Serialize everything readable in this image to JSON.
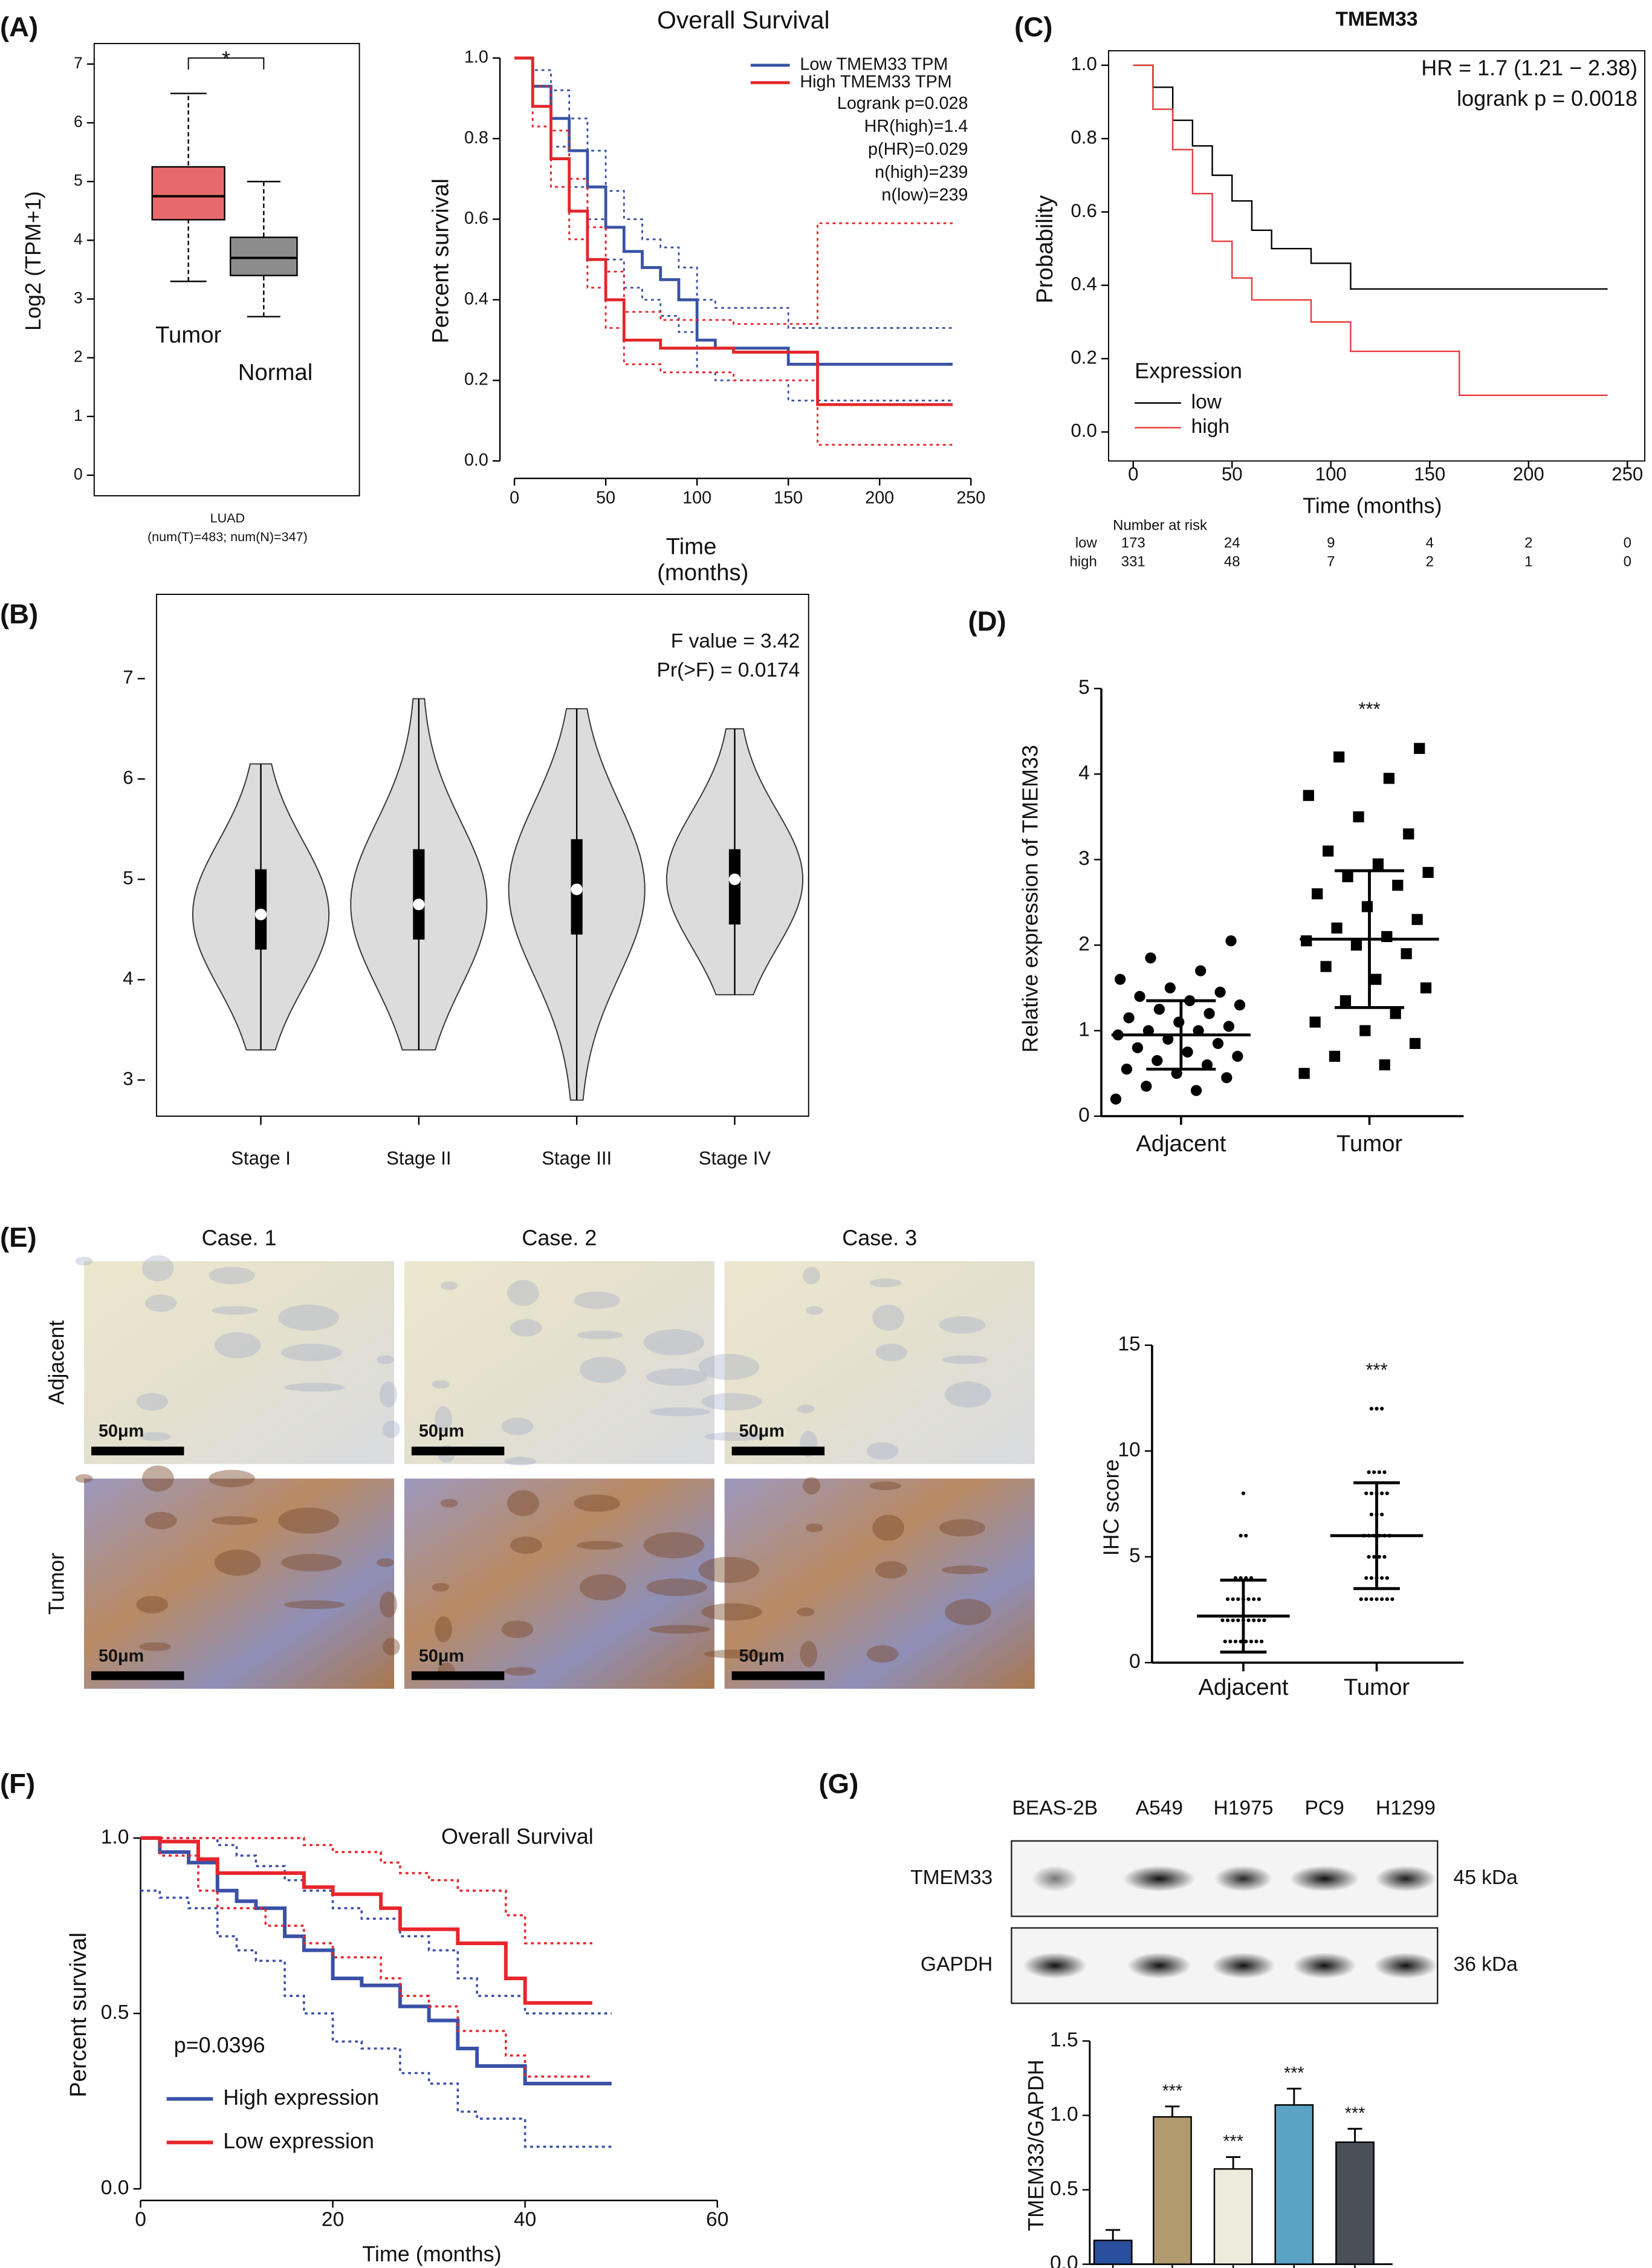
{
  "chart_data": [
    {
      "type": "box",
      "panel_label": "(A)",
      "ylabel": "Log2 (TPM+1)",
      "xlabel": "LUAD",
      "subtitle": "(num(T)=483; num(N)=347)",
      "significance": "*",
      "categories": [
        "Tumor",
        "Normal"
      ],
      "boxes": [
        {
          "q1": 4.35,
          "median": 4.75,
          "q3": 5.25,
          "whisker_low": 3.3,
          "whisker_high": 6.5,
          "color": "#e8696b"
        },
        {
          "q1": 3.4,
          "median": 3.7,
          "q3": 4.05,
          "whisker_low": 2.7,
          "whisker_high": 5.0,
          "color": "#8c8c8c"
        }
      ],
      "ylim": [
        -0.35,
        7.35
      ],
      "yticks": [
        0,
        1,
        2,
        3,
        4,
        5,
        6,
        7
      ]
    },
    {
      "type": "survival",
      "title": "Overall Survival",
      "ylabel": "Percent survival",
      "xlabel": [
        "Time",
        "(months)"
      ],
      "xlim": [
        0,
        250
      ],
      "xticks": [
        0,
        50,
        100,
        150,
        200,
        250
      ],
      "ylim": [
        0,
        1
      ],
      "yticks": [
        {
          "value": 0,
          "label": "0.0"
        },
        {
          "value": 0.2,
          "label": "0.2"
        },
        {
          "value": 0.4,
          "label": "0.4"
        },
        {
          "value": 0.6,
          "label": "0.6"
        },
        {
          "value": 0.8,
          "label": "0.8"
        },
        {
          "value": 1,
          "label": "1.0"
        }
      ],
      "annotations": [
        "Logrank p=0.028",
        "HR(high)=1.4",
        "p(HR)=0.029",
        "n(high)=239",
        "n(low)=239"
      ],
      "series": [
        {
          "name": "Low TMEM33 TPM",
          "color": "#3953a4",
          "x": [
            0,
            10,
            20,
            30,
            40,
            50,
            60,
            70,
            80,
            90,
            100,
            110,
            150,
            240
          ],
          "values": [
            1,
            0.93,
            0.85,
            0.77,
            0.68,
            0.58,
            0.52,
            0.48,
            0.45,
            0.4,
            0.3,
            0.28,
            0.24,
            0.24
          ],
          "ci_lower": [
            1,
            0.88,
            0.78,
            0.68,
            0.6,
            0.5,
            0.43,
            0.4,
            0.36,
            0.32,
            0.22,
            0.2,
            0.15,
            0.15
          ],
          "ci_upper": [
            1,
            0.97,
            0.92,
            0.85,
            0.77,
            0.67,
            0.6,
            0.55,
            0.53,
            0.48,
            0.4,
            0.38,
            0.33,
            0.33
          ]
        },
        {
          "name": "High TMEM33 TPM",
          "color": "#e3262a",
          "x": [
            0,
            10,
            20,
            30,
            40,
            50,
            60,
            80,
            120,
            166,
            240
          ],
          "values": [
            1,
            0.88,
            0.75,
            0.62,
            0.5,
            0.4,
            0.3,
            0.28,
            0.27,
            0.14,
            0.14
          ],
          "ci_lower": [
            1,
            0.83,
            0.68,
            0.55,
            0.43,
            0.33,
            0.24,
            0.22,
            0.2,
            0.04,
            0.04
          ],
          "ci_upper": [
            1,
            0.93,
            0.82,
            0.7,
            0.58,
            0.47,
            0.37,
            0.35,
            0.34,
            0.59,
            0.59
          ]
        }
      ]
    },
    {
      "type": "survival",
      "panel_label": "(C)",
      "title": "TMEM33",
      "ylabel": "Probability",
      "xlabel": [
        "Time (months)"
      ],
      "xlim": [
        0,
        250
      ],
      "xticks": [
        0,
        50,
        100,
        150,
        200,
        250
      ],
      "ylim": [
        0,
        1
      ],
      "yticks": [
        {
          "value": 0,
          "label": "0.0"
        },
        {
          "value": 0.2,
          "label": "0.2"
        },
        {
          "value": 0.4,
          "label": "0.4"
        },
        {
          "value": 0.6,
          "label": "0.6"
        },
        {
          "value": 0.8,
          "label": "0.8"
        },
        {
          "value": 1,
          "label": "1.0"
        }
      ],
      "annotations": [
        "HR = 1.7 (1.21 − 2.38)",
        "logrank  p = 0.0018"
      ],
      "legend_title": "Expression",
      "series": [
        {
          "name": "low",
          "color": "#000000",
          "x": [
            0,
            10,
            20,
            30,
            40,
            50,
            60,
            70,
            90,
            110,
            240
          ],
          "values": [
            1,
            0.94,
            0.85,
            0.78,
            0.7,
            0.63,
            0.55,
            0.5,
            0.46,
            0.39,
            0.39
          ]
        },
        {
          "name": "high",
          "color": "#e8393a",
          "x": [
            0,
            10,
            20,
            30,
            40,
            50,
            60,
            90,
            110,
            165,
            240
          ],
          "values": [
            1,
            0.88,
            0.77,
            0.65,
            0.52,
            0.42,
            0.36,
            0.3,
            0.22,
            0.1,
            0.1
          ]
        }
      ],
      "risk_table": {
        "title": "Number at risk",
        "rows": [
          {
            "name": "low",
            "color": "#000000",
            "values": [
              173,
              24,
              9,
              4,
              2,
              0
            ]
          },
          {
            "name": "high",
            "color": "#e8393a",
            "values": [
              331,
              48,
              7,
              2,
              1,
              0
            ]
          }
        ]
      }
    },
    {
      "type": "violin",
      "panel_label": "(B)",
      "annotations": [
        "F value = 3.42",
        "Pr(>F) = 0.0174"
      ],
      "categories": [
        "Stage I",
        "Stage II",
        "Stage III",
        "Stage IV"
      ],
      "violins": [
        {
          "min": 3.3,
          "q1": 4.3,
          "median": 4.65,
          "q3": 5.1,
          "max": 6.15
        },
        {
          "min": 3.3,
          "q1": 4.4,
          "median": 4.75,
          "q3": 5.3,
          "max": 6.8
        },
        {
          "min": 2.8,
          "q1": 4.45,
          "median": 4.9,
          "q3": 5.4,
          "max": 6.7
        },
        {
          "min": 3.85,
          "q1": 4.55,
          "median": 5.0,
          "q3": 5.3,
          "max": 6.5
        }
      ],
      "color": "#dcdcdc",
      "ylim": [
        2.64,
        7.84
      ],
      "yticks": [
        3,
        4,
        5,
        6,
        7
      ]
    },
    {
      "type": "dot-scatter",
      "panel_label": "(D)",
      "ylabel": "Relative expression of TMEM33",
      "significance": "***",
      "categories": [
        "Adjacent",
        "Tumor"
      ],
      "markers": [
        "circle",
        "square"
      ],
      "groups": [
        {
          "values": [
            0.2,
            0.3,
            0.35,
            0.45,
            0.5,
            0.55,
            0.6,
            0.65,
            0.7,
            0.75,
            0.8,
            0.85,
            0.9,
            0.95,
            1.0,
            1.0,
            1.05,
            1.1,
            1.15,
            1.2,
            1.25,
            1.3,
            1.35,
            1.4,
            1.45,
            1.5,
            1.6,
            1.7,
            1.85,
            2.05
          ],
          "mean": 0.95,
          "sd": 0.4
        },
        {
          "values": [
            0.5,
            0.6,
            0.7,
            0.85,
            1.0,
            1.1,
            1.2,
            1.35,
            1.5,
            1.6,
            1.75,
            1.9,
            2.0,
            2.05,
            2.1,
            2.2,
            2.3,
            2.45,
            2.6,
            2.7,
            2.8,
            2.85,
            2.95,
            3.1,
            3.3,
            3.5,
            3.75,
            3.95,
            4.2,
            4.3
          ],
          "mean": 2.07,
          "sd": 0.8
        }
      ],
      "ylim": [
        0,
        5
      ],
      "yticks": [
        0,
        1,
        2,
        3,
        4,
        5
      ]
    },
    {
      "type": "image-grid",
      "panel_label": "(E)",
      "columns": [
        "Case. 1",
        "Case. 2",
        "Case. 3"
      ],
      "rows": [
        "Adjacent",
        "Tumor"
      ],
      "scale_bar": "50μm"
    },
    {
      "type": "dot-scatter",
      "ylabel": "IHC score",
      "significance": "***",
      "categories": [
        "Adjacent",
        "Tumor"
      ],
      "markers": [
        "dot",
        "dot"
      ],
      "groups": [
        {
          "values": [
            1,
            1,
            1,
            1,
            1,
            1,
            1,
            1,
            2,
            2,
            2,
            2,
            2,
            2,
            2,
            2,
            2,
            3,
            3,
            3,
            3,
            3,
            3,
            3,
            4,
            4,
            4,
            4,
            6,
            6,
            8
          ],
          "mean": 2.2,
          "sd": 1.7
        },
        {
          "values": [
            3,
            3,
            3,
            3,
            3,
            3,
            3,
            4,
            4,
            4,
            4,
            4,
            5,
            5,
            5,
            5,
            6,
            6,
            6,
            6,
            6,
            6,
            7,
            7,
            7,
            8,
            8,
            8,
            8,
            8,
            9,
            9,
            9,
            9,
            12,
            12,
            12
          ],
          "mean": 6.0,
          "sd": 2.5
        }
      ],
      "ylim": [
        0,
        15
      ],
      "yticks": [
        0,
        5,
        10,
        15
      ]
    },
    {
      "type": "survival",
      "panel_label": "(F)",
      "title": "Overall Survival",
      "ylabel": "Percent survival",
      "xlabel": [
        "Time (months)"
      ],
      "xlim": [
        0,
        60
      ],
      "xticks": [
        0,
        20,
        40,
        60
      ],
      "ylim": [
        0,
        1
      ],
      "yticks": [
        {
          "value": 0,
          "label": "0.0"
        },
        {
          "value": 0.5,
          "label": "0.5"
        },
        {
          "value": 1,
          "label": "1.0"
        }
      ],
      "annotations": [
        "p=0.0396"
      ],
      "series": [
        {
          "name": "High expression",
          "color": "#3a50a8",
          "x": [
            0,
            2,
            5,
            8,
            10,
            12,
            15,
            17,
            20,
            23,
            27,
            30,
            33,
            35,
            40,
            49
          ],
          "values": [
            1,
            0.96,
            0.93,
            0.85,
            0.82,
            0.8,
            0.72,
            0.68,
            0.6,
            0.58,
            0.52,
            0.48,
            0.4,
            0.35,
            0.3,
            0.3
          ],
          "ci_lower": [
            0.85,
            0.83,
            0.8,
            0.72,
            0.68,
            0.65,
            0.55,
            0.5,
            0.42,
            0.4,
            0.33,
            0.3,
            0.22,
            0.2,
            0.12,
            0.12
          ],
          "ci_upper": [
            1,
            1,
            1,
            0.98,
            0.95,
            0.92,
            0.88,
            0.85,
            0.8,
            0.77,
            0.72,
            0.68,
            0.6,
            0.55,
            0.5,
            0.5
          ]
        },
        {
          "name": "Low expression",
          "color": "#e8262c",
          "x": [
            0,
            2,
            6,
            8,
            13,
            17,
            20,
            25,
            27,
            30,
            33,
            38,
            40,
            47
          ],
          "values": [
            1,
            0.99,
            0.94,
            0.9,
            0.9,
            0.86,
            0.84,
            0.8,
            0.74,
            0.74,
            0.7,
            0.6,
            0.53,
            0.53
          ],
          "ci_lower": [
            1,
            0.95,
            0.85,
            0.8,
            0.75,
            0.7,
            0.66,
            0.6,
            0.55,
            0.52,
            0.45,
            0.38,
            0.32,
            0.32
          ],
          "ci_upper": [
            1,
            1,
            1,
            1,
            1,
            0.98,
            0.96,
            0.93,
            0.9,
            0.88,
            0.85,
            0.78,
            0.7,
            0.7
          ]
        }
      ]
    },
    {
      "type": "blot",
      "panel_label": "(G)",
      "lanes": [
        "BEAS-2B",
        "A549",
        "H1975",
        "PC9",
        "H1299"
      ],
      "rows": [
        "TMEM33",
        "GAPDH"
      ],
      "sizes": [
        "45 kDa",
        "36 kDa"
      ]
    },
    {
      "type": "bar",
      "ylabel": "TMEM33/GAPDH",
      "values": [
        0.16,
        0.99,
        0.64,
        1.07,
        0.82
      ],
      "errors": [
        0.07,
        0.07,
        0.08,
        0.11,
        0.09
      ],
      "colors": [
        "#2a4f9e",
        "#b09a6e",
        "#ecebdc",
        "#5aa3c4",
        "#4a5058"
      ],
      "significance": [
        null,
        "***",
        "***",
        "***",
        "***"
      ],
      "ylim": [
        0,
        1.5
      ],
      "yticks": [
        {
          "value": 0,
          "label": "0.0"
        },
        {
          "value": 0.5,
          "label": "0.5"
        },
        {
          "value": 1,
          "label": "1.0"
        },
        {
          "value": 1.5,
          "label": "1.5"
        }
      ]
    }
  ]
}
